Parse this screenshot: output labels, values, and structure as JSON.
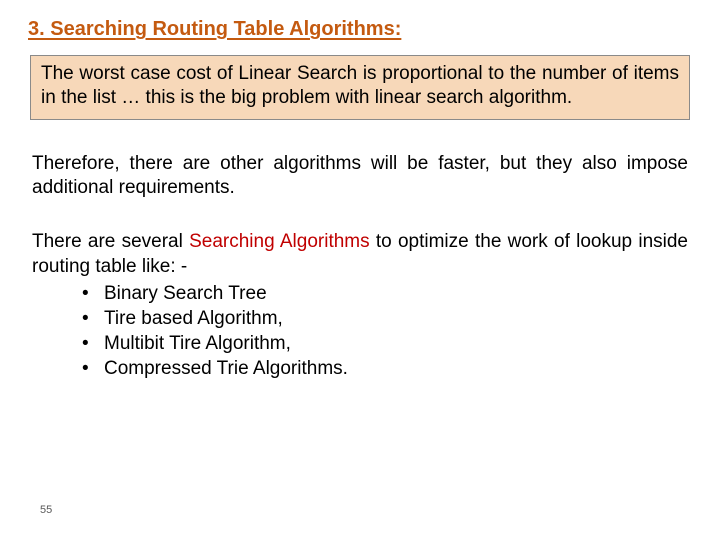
{
  "colors": {
    "title_color": "#c45a10",
    "heading_red": "#c00000",
    "text_color": "#000000",
    "highlight_bg": "#f7d8b9",
    "highlight_border": "#8a8a8a",
    "pagenum_color": "#595959",
    "background": "#ffffff"
  },
  "typography": {
    "title_fontsize_pt": 15,
    "body_fontsize_pt": 14,
    "pagenum_fontsize_pt": 8,
    "font_family": "Arial"
  },
  "title": "3. Searching Routing Table Algorithms:",
  "highlight_box": "The worst case cost of Linear Search is proportional to the number of items in the list … this is the big problem with linear search algorithm.",
  "paragraph1": "Therefore, there are other algorithms will be faster, but they also impose additional requirements.",
  "list_intro_prefix": "There are several ",
  "list_intro_em": "Searching Algorithms",
  "list_intro_suffix": " to optimize the work of lookup inside routing table like: -",
  "bullets": [
    "Binary Search Tree",
    "Tire based Algorithm,",
    "Multibit Tire Algorithm,",
    "Compressed Trie Algorithms."
  ],
  "page_number": "55"
}
